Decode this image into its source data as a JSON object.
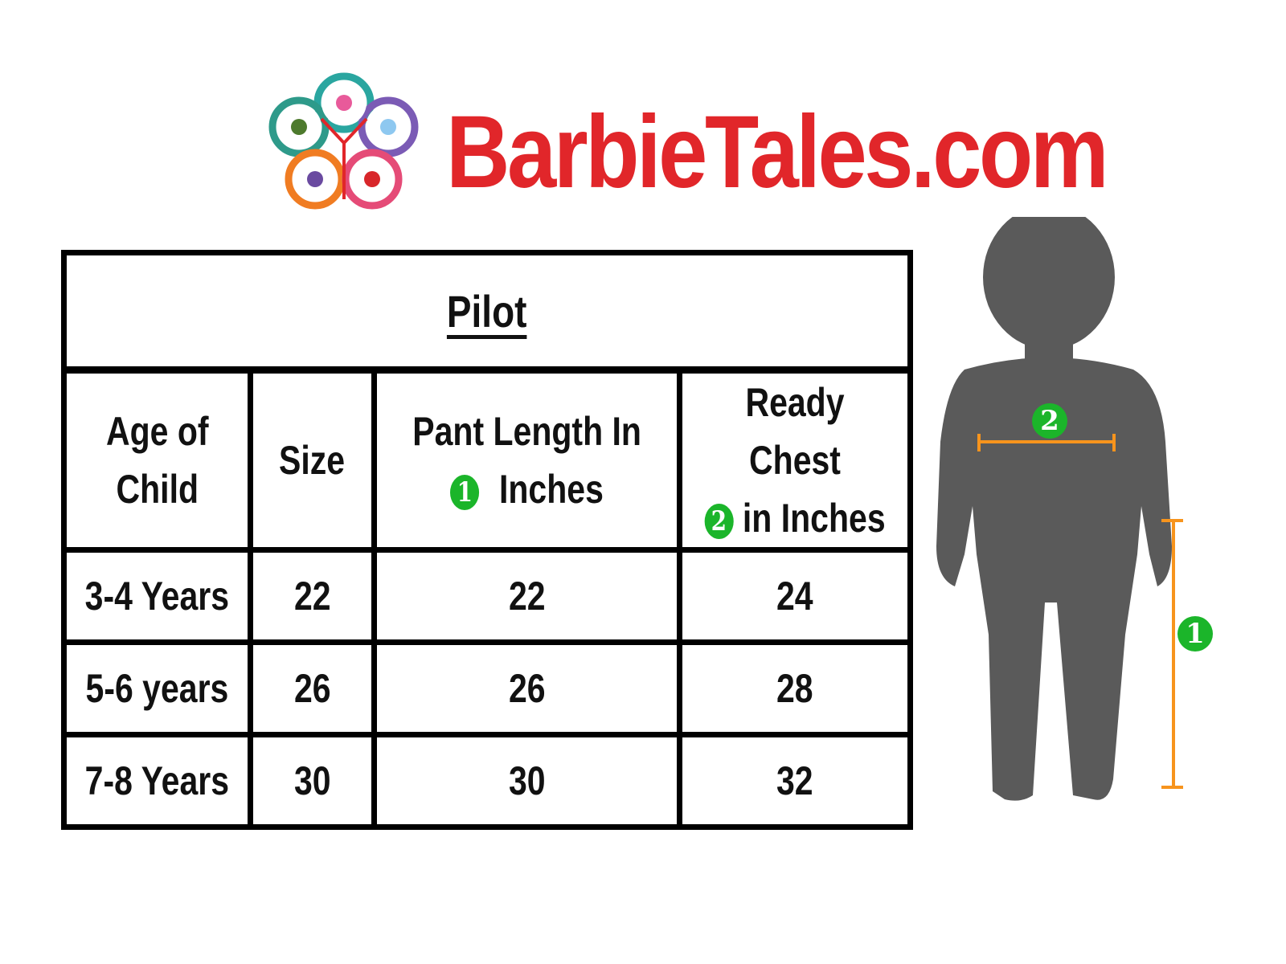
{
  "brand": {
    "name": "BarbieTales.com",
    "color": "#e1262a"
  },
  "table": {
    "title": "Pilot",
    "headers": {
      "age": [
        "Age of",
        "Child"
      ],
      "size": "Size",
      "pant": [
        "Pant Length In",
        "Inches"
      ],
      "chest": [
        "Ready Chest",
        "in Inches"
      ]
    },
    "pant_badge": "1",
    "chest_badge": "2",
    "rows": [
      {
        "age": "3-4 Years",
        "size": "22",
        "pant": "22",
        "chest": "24"
      },
      {
        "age": "5-6 years",
        "size": "26",
        "pant": "26",
        "chest": "28"
      },
      {
        "age": "7-8 Years",
        "size": "30",
        "pant": "30",
        "chest": "32"
      }
    ]
  },
  "figure": {
    "chest_badge": "2",
    "length_badge": "1",
    "marker_color": "#f7941d",
    "badge_color": "#1bb52a",
    "silhouette_color": "#5a5a5a"
  }
}
